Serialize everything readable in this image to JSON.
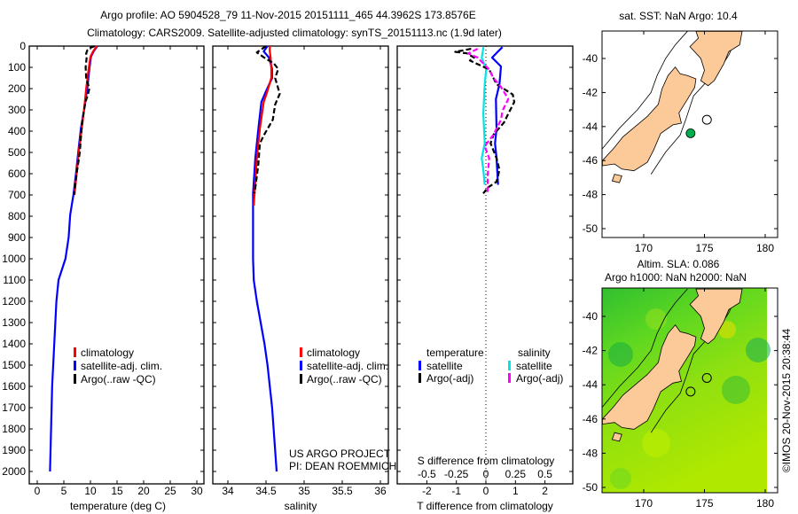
{
  "header": {
    "title_line1": "Argo profile: AO 5904528_79 11-Nov-2015 20151111_465 44.3962S 173.8576E",
    "title_line2": "Climatology: CARS2009. Satellite-adjusted climatology: synTS_20151113.nc (1.9d later)"
  },
  "colors": {
    "climatology": "#ff0000",
    "satellite": "#0000ff",
    "argo": "#000000",
    "sal_satellite": "#00e5e5",
    "sal_argo": "#ff00ff",
    "land": "#fcc998",
    "float": "#00b050"
  },
  "chart_data": [
    {
      "type": "line",
      "xlabel": "temperature (deg C)",
      "ylabel": "depth",
      "xlim": [
        -1.5,
        31.5
      ],
      "ylim": [
        2060,
        0
      ],
      "xticks": [
        "0",
        "5",
        "10",
        "15",
        "20",
        "25",
        "30"
      ],
      "yticks": [
        "0",
        "100",
        "200",
        "300",
        "400",
        "500",
        "600",
        "700",
        "800",
        "900",
        "1000",
        "1100",
        "1200",
        "1300",
        "1400",
        "1500",
        "1600",
        "1700",
        "1800",
        "1900",
        "2000"
      ],
      "legend": [
        "climatology",
        "satellite-adj. clim.",
        "Argo(..raw -QC)"
      ],
      "series": [
        {
          "name": "climatology",
          "depth": [
            0,
            25,
            50,
            100,
            200,
            300,
            400,
            500,
            600,
            700
          ],
          "values": [
            11.2,
            10.5,
            10,
            9.7,
            9.2,
            8.8,
            8.3,
            7.8,
            7.4,
            7.0
          ]
        },
        {
          "name": "satellite-adj. clim.",
          "depth": [
            0,
            25,
            50,
            108,
            200,
            300,
            388,
            500,
            596,
            700,
            792,
            900,
            1000,
            1100,
            1200,
            1300,
            1400,
            1500,
            1600,
            1700,
            1800,
            1900,
            2000
          ],
          "values": [
            11.3,
            10.6,
            10.1,
            9.8,
            9.4,
            8.8,
            8.2,
            7.7,
            7.3,
            6.8,
            6.2,
            5.9,
            5.3,
            4.0,
            3.6,
            3.4,
            3.2,
            3.0,
            2.8,
            2.7,
            2.6,
            2.5,
            2.4
          ]
        },
        {
          "name": "Argo(..raw -QC)",
          "depth": [
            0,
            10,
            20,
            35,
            50,
            100,
            150,
            200,
            230,
            260,
            300,
            350,
            400,
            500,
            600,
            700
          ],
          "values": [
            10.8,
            9.8,
            9.4,
            9.2,
            9.3,
            9.1,
            9.2,
            9.8,
            9.5,
            9.1,
            8.8,
            8.5,
            8.3,
            8.0,
            7.4,
            6.9
          ]
        }
      ]
    },
    {
      "type": "line",
      "xlabel": "salinity",
      "xlim": [
        33.8,
        36.1
      ],
      "ylim": [
        2060,
        0
      ],
      "xticks": [
        "34",
        "34.5",
        "35",
        "35.5",
        "36"
      ],
      "legend": [
        "climatology",
        "satellite-adj. clim.",
        "Argo(..raw -QC)"
      ],
      "series": [
        {
          "name": "climatology",
          "depth": [
            0,
            25,
            54,
            108,
            150,
            221,
            263,
            388,
            525,
            692,
            750
          ],
          "values": [
            34.55,
            34.55,
            34.56,
            34.57,
            34.57,
            34.51,
            34.47,
            34.42,
            34.38,
            34.35,
            34.34
          ]
        },
        {
          "name": "satellite-adj. clim.",
          "depth": [
            0,
            25,
            54,
            108,
            150,
            221,
            263,
            388,
            525,
            692,
            804,
            900,
            1000,
            1100,
            1200,
            1300,
            1400,
            1500,
            1600,
            1700,
            1800,
            1900,
            2000
          ],
          "values": [
            34.52,
            34.47,
            34.54,
            34.58,
            34.58,
            34.49,
            34.44,
            34.4,
            34.36,
            34.33,
            34.33,
            34.33,
            34.33,
            34.34,
            34.38,
            34.43,
            34.48,
            34.52,
            34.55,
            34.58,
            34.6,
            34.62,
            34.64
          ]
        },
        {
          "name": "Argo(..raw -QC)",
          "depth": [
            0,
            20,
            30,
            60,
            80,
            108,
            150,
            224,
            275,
            346,
            414,
            457,
            554,
            665,
            692
          ],
          "values": [
            34.5,
            34.42,
            34.38,
            34.5,
            34.6,
            34.66,
            34.62,
            34.68,
            34.62,
            34.59,
            34.48,
            34.42,
            34.4,
            34.36,
            34.35
          ]
        }
      ]
    },
    {
      "type": "line",
      "xlabel": "T difference from climatology",
      "xlabel2": "S difference from climatology",
      "xlim": [
        -3,
        3
      ],
      "ylim": [
        2060,
        0
      ],
      "xticks": [
        "-2",
        "-1",
        "0",
        "1",
        "2"
      ],
      "xticks2": [
        "-0.5",
        "-0.25",
        "0",
        "0.25",
        "0.5"
      ],
      "legend_groups": [
        "temperature",
        "salinity"
      ],
      "legend": [
        "satellite",
        "Argo(-adj)",
        "satellite",
        "Argo(-adj)"
      ],
      "series": [
        {
          "name": "T satellite",
          "depth": [
            5,
            27,
            54,
            96,
            179,
            249,
            388,
            457,
            527,
            652
          ],
          "values": [
            0.56,
            0.4,
            0.21,
            0.51,
            0.46,
            0.34,
            0.36,
            0.31,
            0.36,
            0.41
          ]
        },
        {
          "name": "T Argo(-adj)",
          "depth": [
            13,
            27,
            34,
            54,
            68,
            110,
            179,
            228,
            263,
            318,
            360,
            416,
            457,
            527,
            582,
            638,
            666,
            693
          ],
          "values": [
            -0.5,
            -1.04,
            -0.64,
            -0.4,
            -0.54,
            0.11,
            0.36,
            0.91,
            0.96,
            0.76,
            0.61,
            0.26,
            0.16,
            0.36,
            0.46,
            0.36,
            0.06,
            -0.09
          ]
        },
        {
          "name": "S satellite",
          "depth": [
            5,
            54,
            110,
            179,
            318,
            457,
            527,
            582,
            652
          ],
          "values": [
            -0.02,
            -0.035,
            0.002,
            -0.01,
            -0.022,
            -0.01,
            -0.035,
            -0.022,
            -0.01
          ]
        },
        {
          "name": "S Argo(-adj)",
          "depth": [
            13,
            34,
            54,
            110,
            151,
            193,
            249,
            304,
            346,
            416,
            471,
            527,
            610,
            693
          ],
          "values": [
            -0.07,
            -0.15,
            -0.07,
            0.028,
            0.065,
            0.128,
            0.19,
            0.14,
            0.128,
            0.065,
            -0.01,
            0.028,
            0.015,
            0.015
          ]
        }
      ]
    }
  ],
  "credits": {
    "line1": "US ARGO PROJECT",
    "line2": "PI: DEAN ROEMMICH"
  },
  "maps": {
    "sst_title": "sat. SST: NaN Argo: 10.4",
    "sla_title1": "Altim. SLA: 0.086",
    "sla_title2": "Argo h1000: NaN h2000: NaN",
    "lat_ticks": [
      "-40",
      "-42",
      "-44",
      "-46",
      "-48",
      "-50"
    ],
    "lon_ticks": [
      "170",
      "175",
      "180"
    ],
    "float_position": {
      "lon": 173.8576,
      "lat": -44.3962
    },
    "watermark": "©IMOS 20-Nov-2015 20:38:44"
  }
}
